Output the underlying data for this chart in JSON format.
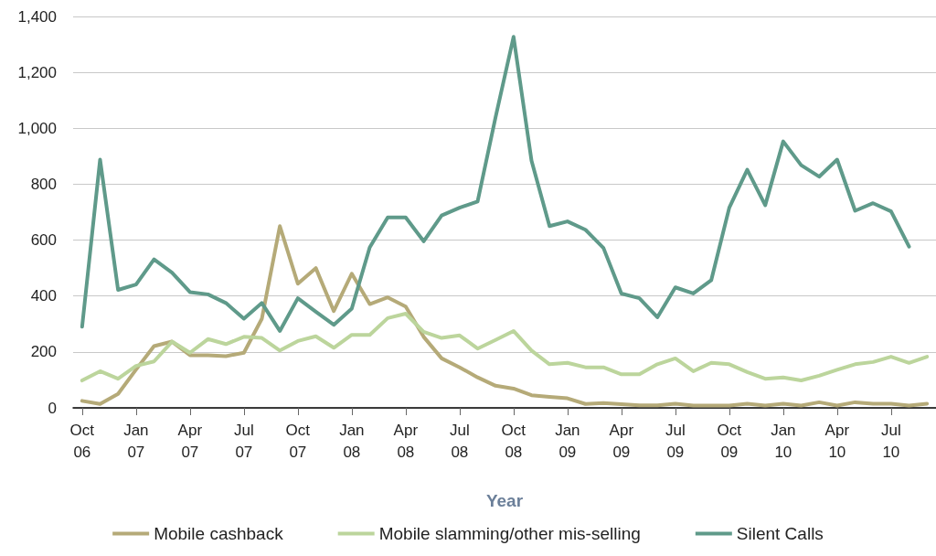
{
  "chart_data": {
    "type": "line",
    "xlabel": "Year",
    "categories": [
      "Oct 06",
      null,
      null,
      "Jan 07",
      null,
      null,
      "Apr 07",
      null,
      null,
      "Jul 07",
      null,
      null,
      "Oct 07",
      null,
      null,
      "Jan 08",
      null,
      null,
      "Apr 08",
      null,
      null,
      "Jul 08",
      null,
      null,
      "Oct 08",
      null,
      null,
      "Jan 09",
      null,
      null,
      "Apr 09",
      null,
      null,
      "Jul 09",
      null,
      null,
      "Oct 09",
      null,
      null,
      "Jan 10",
      null,
      null,
      "Apr 10",
      null,
      null,
      "Jul 10",
      null,
      null
    ],
    "series": [
      {
        "name": "Mobile cashback",
        "color": "#b5aa78",
        "values": [
          25,
          14,
          50,
          137,
          221,
          237,
          188,
          188,
          185,
          197,
          319,
          650,
          444,
          500,
          346,
          480,
          371,
          395,
          362,
          254,
          177,
          145,
          109,
          79,
          69,
          45,
          39,
          34,
          14,
          17,
          13,
          9,
          9,
          15,
          8,
          8,
          8,
          15,
          8,
          15,
          8,
          20,
          8,
          20,
          15,
          15,
          8,
          15
        ]
      },
      {
        "name": "Mobile slamming/other mis-selling",
        "color": "#bcd59c",
        "values": [
          98,
          131,
          104,
          150,
          166,
          237,
          197,
          246,
          228,
          254,
          250,
          205,
          239,
          256,
          215,
          261,
          261,
          321,
          337,
          272,
          250,
          259,
          212,
          243,
          275,
          205,
          156,
          161,
          145,
          145,
          120,
          120,
          156,
          177,
          131,
          161,
          156,
          128,
          104,
          109,
          98,
          115,
          136,
          156,
          164,
          183,
          161,
          183
        ]
      },
      {
        "name": "Silent Calls",
        "color": "#5f9a8a",
        "values": [
          290,
          888,
          422,
          441,
          531,
          484,
          414,
          406,
          375,
          319,
          375,
          275,
          392,
          344,
          297,
          355,
          574,
          681,
          681,
          596,
          688,
          716,
          738,
          1040,
          1327,
          884,
          650,
          667,
          637,
          572,
          409,
          392,
          324,
          431,
          409,
          457,
          716,
          852,
          725,
          953,
          868,
          827,
          888,
          705,
          732,
          703,
          577,
          null
        ]
      }
    ],
    "ylim": [
      0,
      1400
    ],
    "yticks": [
      0,
      200,
      400,
      600,
      800,
      {
        "value": 1000,
        "label": "1,000"
      },
      {
        "value": 1200,
        "label": "1,200"
      },
      {
        "value": 1400,
        "label": "1,400"
      }
    ],
    "grid": "y",
    "legend": "bottom",
    "marker": "none",
    "line_style": "solid"
  }
}
